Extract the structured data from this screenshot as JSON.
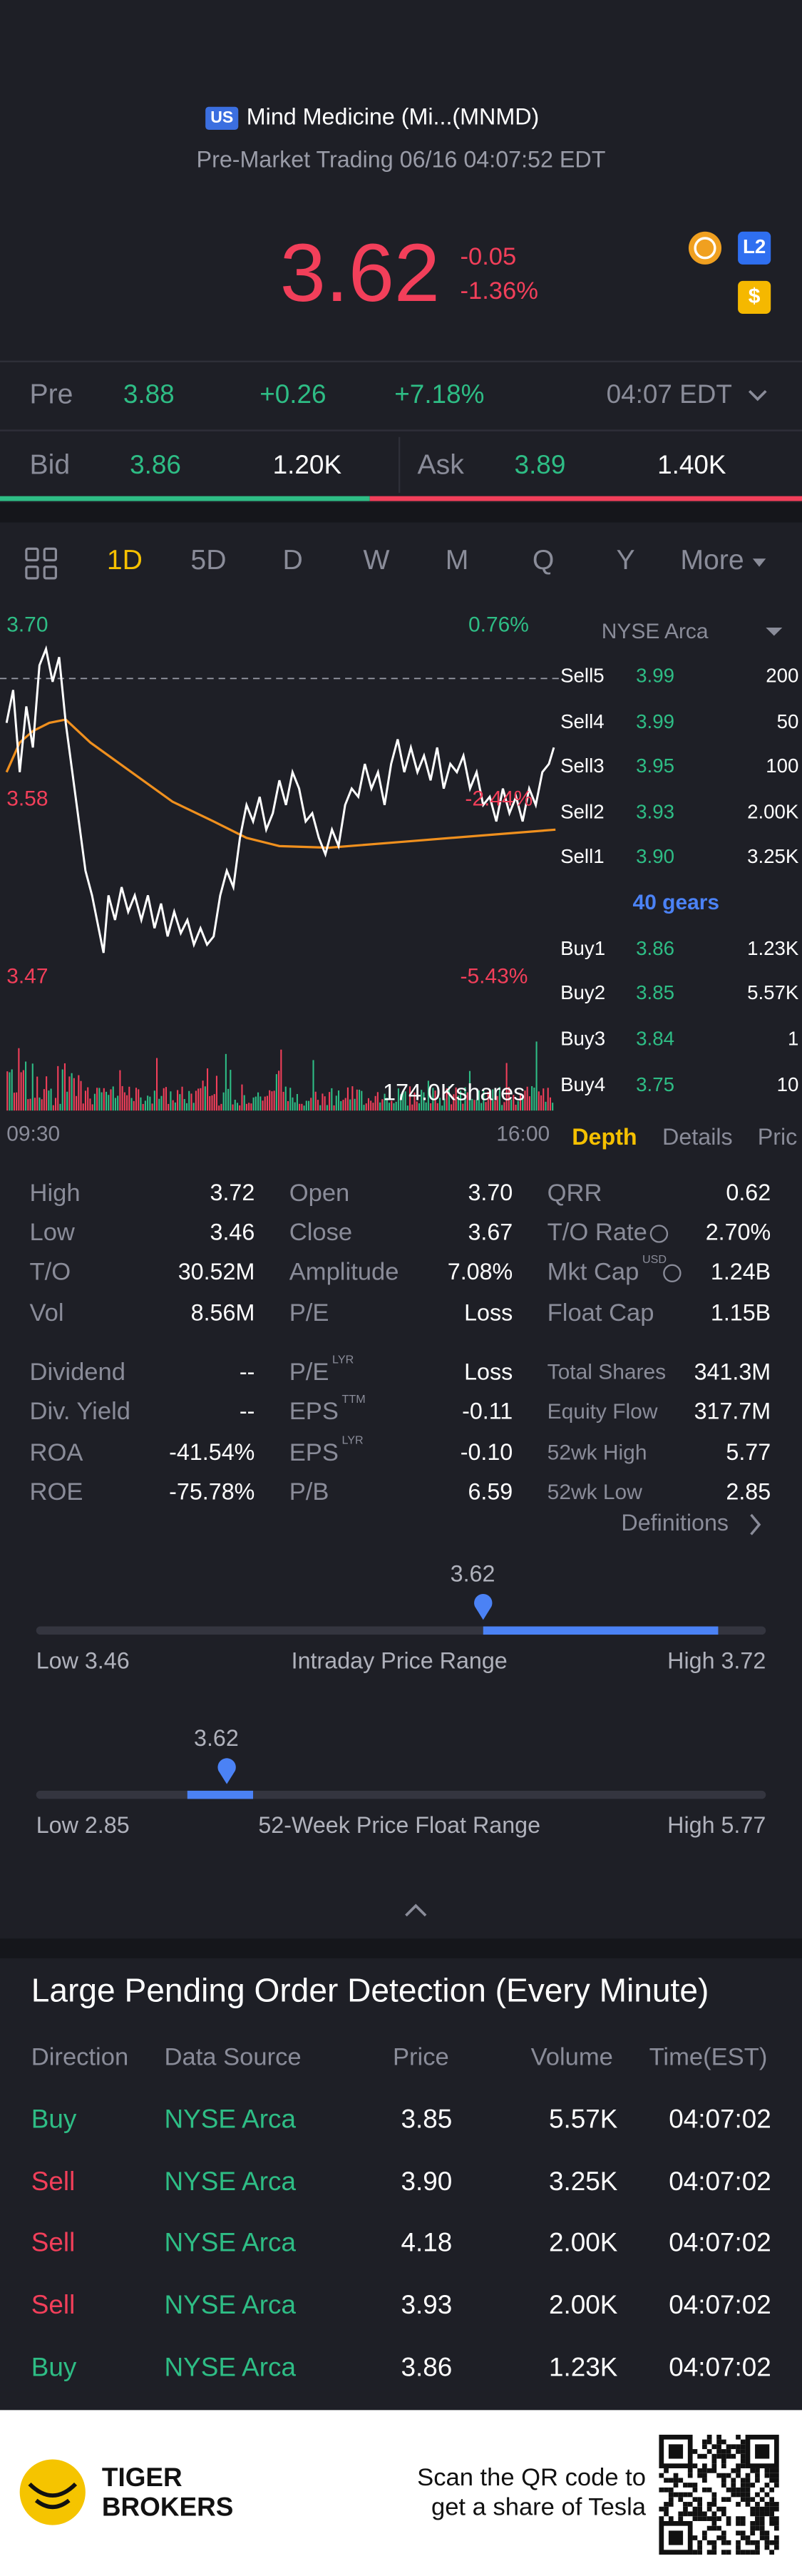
{
  "header": {
    "market": "US",
    "name": "Mind Medicine (Mi...(MNMD)",
    "status": "Pre-Market Trading 06/16 04:07:52 EDT"
  },
  "quote": {
    "price": "3.62",
    "change": "-0.05",
    "change_pct": "-1.36%",
    "level": "L2",
    "currency": "$"
  },
  "pre": {
    "label": "Pre",
    "price": "3.88",
    "change": "+0.26",
    "change_pct": "+7.18%",
    "time": "04:07 EDT"
  },
  "bid": {
    "label": "Bid",
    "price": "3.86",
    "size": "1.20K"
  },
  "ask": {
    "label": "Ask",
    "price": "3.89",
    "size": "1.40K"
  },
  "periods": [
    "1D",
    "5D",
    "D",
    "W",
    "M",
    "Q",
    "Y",
    "More"
  ],
  "chart": {
    "axis": [
      {
        "price": "3.70",
        "pct": "0.76%"
      },
      {
        "price": "3.58",
        "pct": "-2.44%"
      },
      {
        "price": "3.47",
        "pct": "-5.43%"
      }
    ],
    "volume": "174.0Kshares",
    "start": "09:30",
    "end": "16:00"
  },
  "depth": {
    "exchange": "NYSE Arca",
    "sells": [
      {
        "label": "Sell5",
        "price": "3.99",
        "size": "200"
      },
      {
        "label": "Sell4",
        "price": "3.99",
        "size": "50"
      },
      {
        "label": "Sell3",
        "price": "3.95",
        "size": "100"
      },
      {
        "label": "Sell2",
        "price": "3.93",
        "size": "2.00K"
      },
      {
        "label": "Sell1",
        "price": "3.90",
        "size": "3.25K"
      }
    ],
    "gears": "40 gears",
    "buys": [
      {
        "label": "Buy1",
        "price": "3.86",
        "size": "1.23K"
      },
      {
        "label": "Buy2",
        "price": "3.85",
        "size": "5.57K"
      },
      {
        "label": "Buy3",
        "price": "3.84",
        "size": "1"
      },
      {
        "label": "Buy4",
        "price": "3.75",
        "size": "10"
      }
    ],
    "tabs": [
      "Depth",
      "Details",
      "Pric"
    ]
  },
  "stats": {
    "columns": [
      [
        {
          "label": "High",
          "value": "3.72"
        },
        {
          "label": "Low",
          "value": "3.46"
        },
        {
          "label": "T/O",
          "value": "30.52M"
        },
        {
          "label": "Vol",
          "value": "8.56M"
        },
        {
          "label": "Dividend",
          "value": "--"
        },
        {
          "label": "Div. Yield",
          "value": "--"
        },
        {
          "label": "ROA",
          "value": "-41.54%"
        },
        {
          "label": "ROE",
          "value": "-75.78%"
        }
      ],
      [
        {
          "label": "Open",
          "value": "3.70"
        },
        {
          "label": "Close",
          "value": "3.67"
        },
        {
          "label": "Amplitude",
          "value": "7.08%"
        },
        {
          "label": "P/E",
          "value": "Loss"
        },
        {
          "label": "P/E",
          "sup": "LYR",
          "value": "Loss"
        },
        {
          "label": "EPS",
          "sup": "TTM",
          "value": "-0.11"
        },
        {
          "label": "EPS",
          "sup": "LYR",
          "value": "-0.10"
        },
        {
          "label": "P/B",
          "value": "6.59"
        }
      ],
      [
        {
          "label": "QRR",
          "value": "0.62"
        },
        {
          "label": "T/O Rate",
          "value": "2.70%"
        },
        {
          "label": "Mkt Cap",
          "sup": "USD",
          "value": "1.24B"
        },
        {
          "label": "Float Cap",
          "value": "1.15B"
        },
        {
          "label": "Total Shares",
          "value": "341.3M"
        },
        {
          "label": "Equity Flow",
          "value": "317.7M"
        },
        {
          "label": "52wk High",
          "value": "5.77"
        },
        {
          "label": "52wk Low",
          "value": "2.85"
        }
      ]
    ]
  },
  "definitions": "Definitions",
  "ranges": [
    {
      "current": "3.62",
      "low": "Low 3.46",
      "title": "Intraday Price Range",
      "high": "High 3.72"
    },
    {
      "current": "3.62",
      "low": "Low 2.85",
      "title": "52-Week Price Float Range",
      "high": "High 5.77"
    }
  ],
  "orders": {
    "title": "Large Pending Order Detection (Every Minute)",
    "columns": [
      "Direction",
      "Data Source",
      "Price",
      "Volume",
      "Time(EST)"
    ],
    "rows": [
      [
        "Buy",
        "NYSE Arca",
        "3.85",
        "5.57K",
        "04:07:02"
      ],
      [
        "Sell",
        "NYSE Arca",
        "3.90",
        "3.25K",
        "04:07:02"
      ],
      [
        "Sell",
        "NYSE Arca",
        "4.18",
        "2.00K",
        "04:07:02"
      ],
      [
        "Sell",
        "NYSE Arca",
        "3.93",
        "2.00K",
        "04:07:02"
      ],
      [
        "Buy",
        "NYSE Arca",
        "3.86",
        "1.23K",
        "04:07:02"
      ]
    ]
  },
  "footer": {
    "brand": [
      "TIGER",
      "BROKERS"
    ],
    "cta": [
      "Scan the QR code to",
      "get a share of Tesla"
    ]
  }
}
